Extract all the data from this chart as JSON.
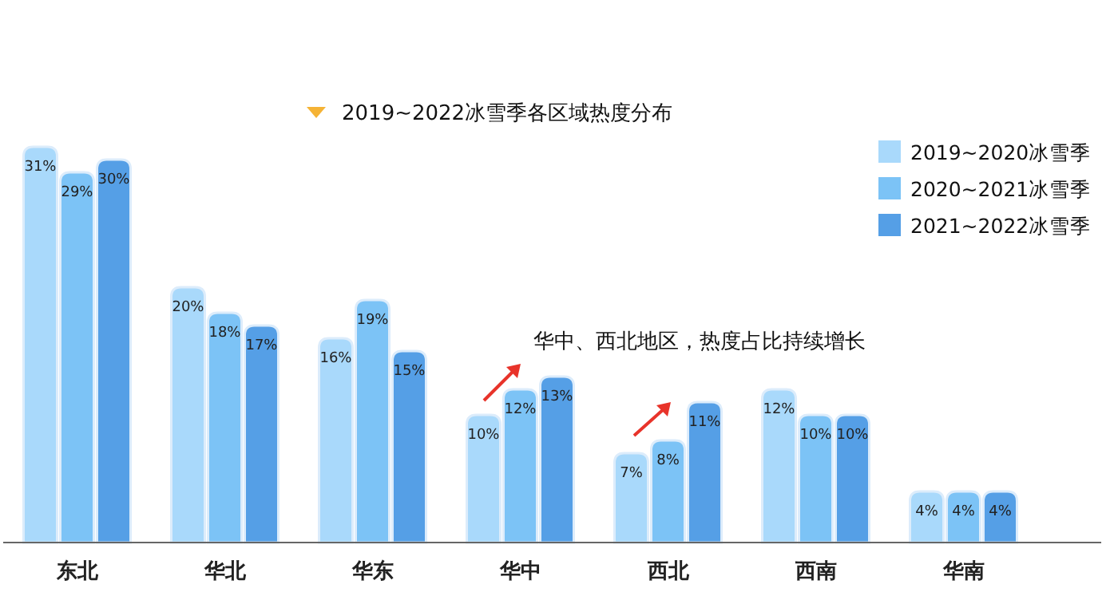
{
  "chart_data": {
    "type": "bar",
    "title": "2019~2022冰雪季各区域热度分布",
    "categories": [
      "东北",
      "华北",
      "华东",
      "华中",
      "西北",
      "西南",
      "华南"
    ],
    "series": [
      {
        "name": "2019~2020冰雪季",
        "color": "#a9d9fb",
        "values": [
          31,
          20,
          16,
          10,
          7,
          12,
          4
        ],
        "value_labels": [
          "31%",
          "20%",
          "16%",
          "10%",
          "7%",
          "12%",
          "4%"
        ]
      },
      {
        "name": "2020~2021冰雪季",
        "color": "#7cc3f6",
        "values": [
          29,
          18,
          19,
          12,
          8,
          10,
          4
        ],
        "value_labels": [
          "29%",
          "18%",
          "19%",
          "12%",
          "8%",
          "10%",
          "4%"
        ]
      },
      {
        "name": "2021~2022冰雪季",
        "color": "#559fe6",
        "values": [
          30,
          17,
          15,
          13,
          11,
          10,
          4
        ],
        "value_labels": [
          "30%",
          "17%",
          "15%",
          "13%",
          "11%",
          "10%",
          "4%"
        ]
      }
    ],
    "legend": "top right",
    "annotations": [
      "华中、西北地区，热度占比持续增长"
    ]
  }
}
